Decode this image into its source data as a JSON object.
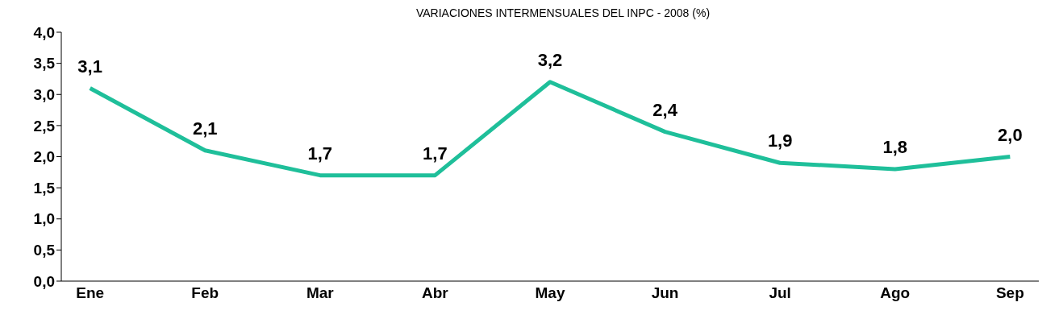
{
  "chart_data": {
    "type": "line",
    "title": "VARIACIONES INTERMENSUALES DEL INPC - 2008 (%)",
    "categories": [
      "Ene",
      "Feb",
      "Mar",
      "Abr",
      "May",
      "Jun",
      "Jul",
      "Ago",
      "Sep"
    ],
    "series": [
      {
        "color": "#1fbf9a",
        "values": [
          3.1,
          2.1,
          1.7,
          1.7,
          3.2,
          2.4,
          1.9,
          1.8,
          2.0
        ],
        "value_labels": [
          "3,1",
          "2,1",
          "1,7",
          "1,7",
          "3,2",
          "2,4",
          "1,9",
          "1,8",
          "2,0"
        ]
      }
    ],
    "ylim": [
      0,
      4
    ],
    "yticks": [
      {
        "value": 0,
        "label": "0,0"
      },
      {
        "value": 0.5,
        "label": "0,5"
      },
      {
        "value": 1,
        "label": "1,0"
      },
      {
        "value": 1.5,
        "label": "1,5"
      },
      {
        "value": 2,
        "label": "2,0"
      },
      {
        "value": 2.5,
        "label": "2,5"
      },
      {
        "value": 3,
        "label": "3,0"
      },
      {
        "value": 3.5,
        "label": "3,5"
      },
      {
        "value": 4,
        "label": "4,0"
      }
    ],
    "grid": false,
    "marker": "none",
    "line_style": "solid",
    "legend": false
  }
}
